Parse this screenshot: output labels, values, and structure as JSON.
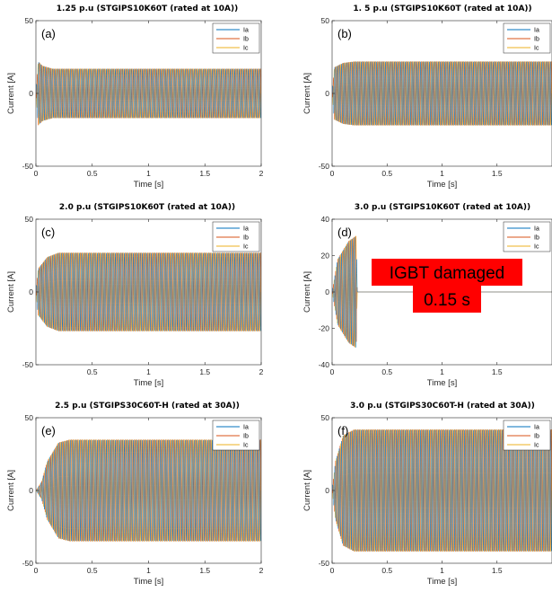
{
  "chart_data": [
    {
      "type": "line",
      "label": "(a)",
      "title": "1.25 p.u (STGIPS10K60T (rated at 10A))",
      "xlabel": "Time [s]",
      "ylabel": "Current [A]",
      "xlim": [
        0,
        2
      ],
      "ylim": [
        -50,
        50
      ],
      "xticks": [
        "0",
        "0.5",
        "1",
        "1.5",
        "2"
      ],
      "yticks": [
        "50",
        "0",
        "-50"
      ],
      "legend": [
        "Ia",
        "Ib",
        "Ic"
      ],
      "legend_position": "top-right",
      "envelope": [
        [
          0,
          0
        ],
        [
          0.02,
          22
        ],
        [
          0.06,
          19
        ],
        [
          0.15,
          17
        ],
        [
          2.0,
          17
        ]
      ]
    },
    {
      "type": "line",
      "label": "(b)",
      "title": "1. 5 p.u (STGIPS10K60T (rated at 10A))",
      "xlabel": "Time [s]",
      "ylabel": "Current [A]",
      "xlim": [
        0,
        2
      ],
      "ylim": [
        -50,
        50
      ],
      "xticks": [
        "0",
        "0.5",
        "1",
        "1.5"
      ],
      "yticks": [
        "50",
        "0",
        "-50"
      ],
      "legend": [
        "Ia",
        "Ib",
        "Ic"
      ],
      "legend_position": "top-right",
      "envelope": [
        [
          0,
          0
        ],
        [
          0.02,
          18
        ],
        [
          0.1,
          21
        ],
        [
          0.2,
          22
        ],
        [
          2.0,
          22
        ]
      ]
    },
    {
      "type": "line",
      "label": "(c)",
      "title": "2.0 p.u (STGIPS10K60T (rated at 10A))",
      "xlabel": "Time [s]",
      "ylabel": "Current [A]",
      "xlim": [
        0,
        2
      ],
      "ylim": [
        -50,
        50
      ],
      "xticks": [
        "0.5",
        "1",
        "1.5",
        "2"
      ],
      "yticks": [
        "50",
        "0",
        "-50"
      ],
      "legend": [
        "Ia",
        "Ib",
        "Ic"
      ],
      "legend_position": "top-right",
      "envelope": [
        [
          0,
          0
        ],
        [
          0.02,
          16
        ],
        [
          0.1,
          24
        ],
        [
          0.2,
          27
        ],
        [
          2.0,
          27
        ]
      ]
    },
    {
      "type": "line",
      "label": "(d)",
      "title": "3.0 p.u (STGIPS10K60T (rated at 10A))",
      "xlabel": "Time [s]",
      "ylabel": "Current [A]",
      "xlim": [
        0,
        2
      ],
      "ylim": [
        -40,
        40
      ],
      "xticks": [
        "0",
        "0.5",
        "1",
        "1.5"
      ],
      "yticks": [
        "40",
        "20",
        "0",
        "-20",
        "-40"
      ],
      "legend": [
        "Ia",
        "Ib",
        "Ic"
      ],
      "legend_position": "top-right",
      "envelope": [
        [
          0,
          0
        ],
        [
          0.05,
          18
        ],
        [
          0.15,
          28
        ],
        [
          0.22,
          31
        ],
        [
          0.23,
          0
        ],
        [
          2.0,
          0
        ]
      ],
      "annotation": {
        "line1": "IGBT damaged",
        "line2": "0.15 s",
        "color": "#ff0000"
      }
    },
    {
      "type": "line",
      "label": "(e)",
      "title": "2.5 p.u (STGIPS30C60T-H (rated at 30A))",
      "xlabel": "Time [s]",
      "ylabel": "Current [A]",
      "xlim": [
        0,
        2
      ],
      "ylim": [
        -50,
        50
      ],
      "xticks": [
        "0",
        "0.5",
        "1",
        "1.5",
        "2"
      ],
      "yticks": [
        "50",
        "0",
        "-50"
      ],
      "legend": [
        "Ia",
        "Ib",
        "Ic"
      ],
      "legend_position": "top-right",
      "envelope": [
        [
          0,
          0
        ],
        [
          0.05,
          6
        ],
        [
          0.1,
          20
        ],
        [
          0.2,
          33
        ],
        [
          0.3,
          35
        ],
        [
          2.0,
          35
        ]
      ]
    },
    {
      "type": "line",
      "label": "(f)",
      "title": "3.0 p.u (STGIPS30C60T-H (rated at 30A))",
      "xlabel": "Time [s]",
      "ylabel": "Current [A]",
      "xlim": [
        0,
        2
      ],
      "ylim": [
        -50,
        50
      ],
      "xticks": [
        "0",
        "0.5",
        "1",
        "1.5"
      ],
      "yticks": [
        "50",
        "0",
        "-50"
      ],
      "legend": [
        "Ia",
        "Ib",
        "Ic"
      ],
      "legend_position": "top-right",
      "envelope": [
        [
          0,
          0
        ],
        [
          0.03,
          20
        ],
        [
          0.1,
          38
        ],
        [
          0.2,
          42
        ],
        [
          2.0,
          42
        ]
      ]
    }
  ],
  "colors": {
    "ia": "#0072bd",
    "ib": "#d95319",
    "ic": "#edb120",
    "annotation_bg": "#ff0000"
  }
}
